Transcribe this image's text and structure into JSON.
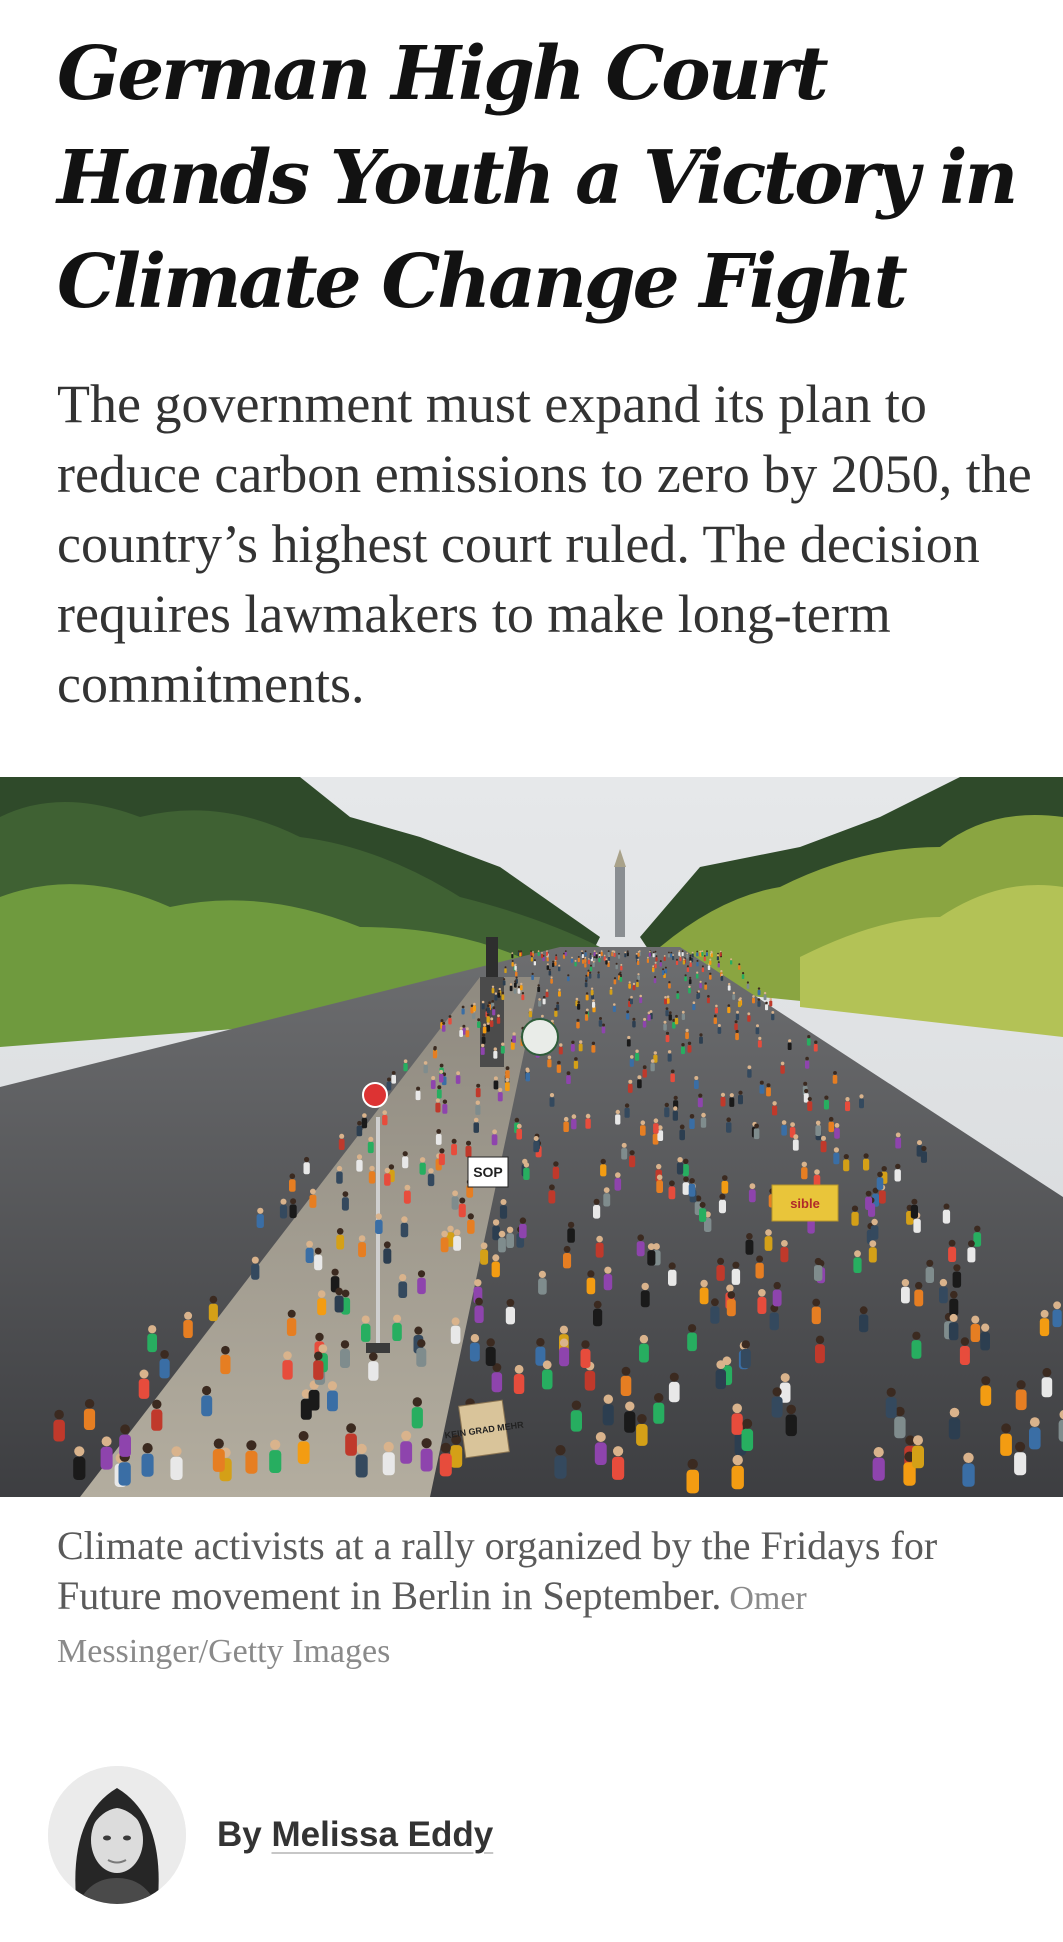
{
  "article": {
    "headline": "German High Court Hands Youth a Victory in Climate Change Fight",
    "summary": "The government must expand its plan to reduce carbon emissions to zero by 2050, the country’s highest court ruled. The decision requires lawmakers to make long-term commitments."
  },
  "photo": {
    "signs": [
      "SOP",
      "sible",
      "KEIN GRAD MEHR"
    ],
    "caption": "Climate activists at a rally organized by the Fridays for Future movement in Berlin in September.",
    "credit": "Omer Messinger/Getty Images"
  },
  "byline": {
    "prefix": "By",
    "author": "Melissa Eddy",
    "avatar_icon": "author-portrait-icon"
  }
}
